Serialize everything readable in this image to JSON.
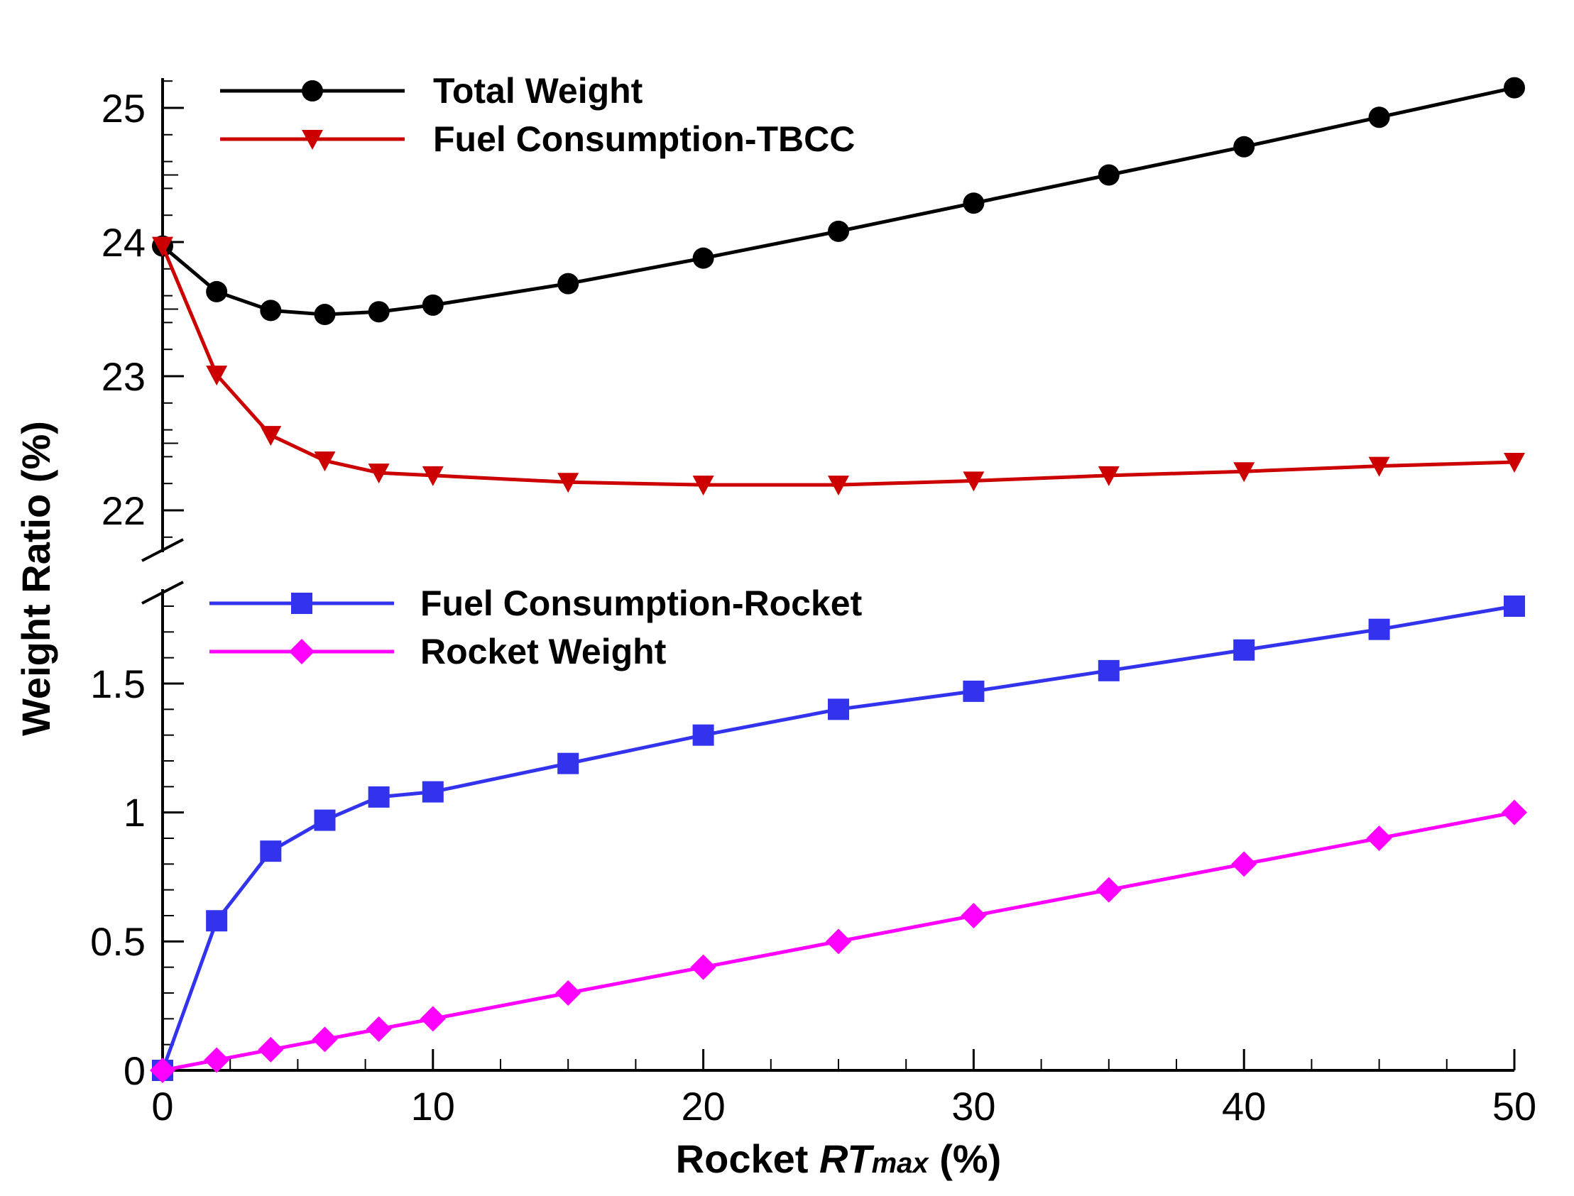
{
  "chart_data": {
    "type": "line",
    "title": "",
    "xlabel_main": "Rocket ",
    "xlabel_italic": "RT",
    "xlabel_sub": "max",
    "xlabel_unit": " (%)",
    "ylabel": "Weight Ratio  (%)",
    "xlim": [
      0,
      50
    ],
    "ylim_upper": [
      21.6,
      25.25
    ],
    "ylim_lower": [
      0,
      1.82
    ],
    "broken_y_axis": true,
    "x_ticks": [
      "0",
      "10",
      "20",
      "30",
      "40",
      "50"
    ],
    "y_ticks_upper": [
      "22",
      "23",
      "24",
      "25"
    ],
    "y_ticks_lower": [
      "0",
      "0.5",
      "1",
      "1.5"
    ],
    "legend_upper": [
      "Total Weight",
      "Fuel Consumption-TBCC"
    ],
    "legend_lower": [
      "Fuel Consumption-Rocket",
      "Rocket Weight"
    ],
    "legend_placement": "top-left of each panel",
    "series": [
      {
        "name": "Total Weight",
        "panel": "upper",
        "color": "#000000",
        "marker": "circle",
        "x": [
          0,
          2,
          4,
          6,
          8,
          10,
          15,
          20,
          25,
          30,
          35,
          40,
          45,
          50
        ],
        "values": [
          23.97,
          23.63,
          23.49,
          23.46,
          23.48,
          23.53,
          23.69,
          23.88,
          24.08,
          24.29,
          24.5,
          24.71,
          24.93,
          25.15
        ]
      },
      {
        "name": "Fuel Consumption-TBCC",
        "panel": "upper",
        "color": "#cc0000",
        "marker": "triangle-down",
        "x": [
          0,
          2,
          4,
          6,
          8,
          10,
          15,
          20,
          25,
          30,
          35,
          40,
          45,
          50
        ],
        "values": [
          23.97,
          23.01,
          22.56,
          22.37,
          22.28,
          22.26,
          22.21,
          22.19,
          22.19,
          22.22,
          22.26,
          22.29,
          22.33,
          22.36
        ]
      },
      {
        "name": "Fuel Consumption-Rocket",
        "panel": "lower",
        "color": "#3333ee",
        "marker": "square",
        "x": [
          0,
          2,
          4,
          6,
          8,
          10,
          15,
          20,
          25,
          30,
          35,
          40,
          45,
          50
        ],
        "values": [
          0,
          0.58,
          0.85,
          0.97,
          1.06,
          1.08,
          1.19,
          1.3,
          1.4,
          1.47,
          1.55,
          1.63,
          1.71,
          1.8
        ]
      },
      {
        "name": "Rocket Weight",
        "panel": "lower",
        "color": "#ff00ff",
        "marker": "diamond",
        "x": [
          0,
          2,
          4,
          6,
          8,
          10,
          15,
          20,
          25,
          30,
          35,
          40,
          45,
          50
        ],
        "values": [
          0,
          0.04,
          0.08,
          0.12,
          0.16,
          0.2,
          0.3,
          0.4,
          0.5,
          0.6,
          0.7,
          0.8,
          0.9,
          1.0
        ]
      }
    ]
  }
}
